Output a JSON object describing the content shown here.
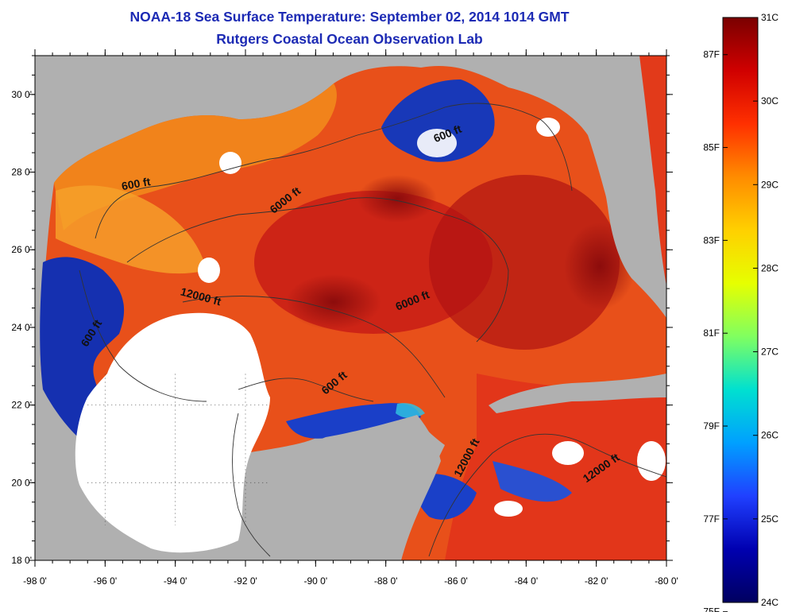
{
  "title": {
    "line1": "NOAA-18 Sea Surface Temperature:  September 02, 2014 1014 GMT",
    "line2": "Rutgers Coastal Ocean Observation Lab"
  },
  "map": {
    "lon_range": [
      -98,
      -80
    ],
    "lat_range": [
      18,
      31
    ],
    "lon_ticks": [
      {
        "value": -98,
        "label": "-98 0'"
      },
      {
        "value": -96,
        "label": "-96 0'"
      },
      {
        "value": -94,
        "label": "-94 0'"
      },
      {
        "value": -92,
        "label": "-92 0'"
      },
      {
        "value": -90,
        "label": "-90 0'"
      },
      {
        "value": -88,
        "label": "-88 0'"
      },
      {
        "value": -86,
        "label": "-86 0'"
      },
      {
        "value": -84,
        "label": "-84 0'"
      },
      {
        "value": -82,
        "label": "-82 0'"
      },
      {
        "value": -80,
        "label": "-80 0'"
      }
    ],
    "lat_ticks": [
      {
        "value": 18,
        "label": "18 0'"
      },
      {
        "value": 20,
        "label": "20 0'"
      },
      {
        "value": 22,
        "label": "22 0'"
      },
      {
        "value": 24,
        "label": "24 0'"
      },
      {
        "value": 26,
        "label": "26 0'"
      },
      {
        "value": 28,
        "label": "28 0'"
      },
      {
        "value": 30,
        "label": "30 0'"
      }
    ],
    "depth_labels": [
      {
        "text": "600 ft",
        "lon": -86.2,
        "lat": 28.9,
        "angle": -22
      },
      {
        "text": "600 ft",
        "lon": -95.1,
        "lat": 27.6,
        "angle": -10
      },
      {
        "text": "6000 ft",
        "lon": -90.8,
        "lat": 27.2,
        "angle": -38
      },
      {
        "text": "12000 ft",
        "lon": -93.3,
        "lat": 24.7,
        "angle": 15
      },
      {
        "text": "6000 ft",
        "lon": -87.2,
        "lat": 24.6,
        "angle": -22
      },
      {
        "text": "600 ft",
        "lon": -96.3,
        "lat": 23.8,
        "angle": -58
      },
      {
        "text": "600 ft",
        "lon": -89.4,
        "lat": 22.5,
        "angle": -40
      },
      {
        "text": "12000 ft",
        "lon": -85.6,
        "lat": 20.6,
        "angle": -62
      },
      {
        "text": "12000 ft",
        "lon": -81.8,
        "lat": 20.3,
        "angle": -35
      }
    ],
    "colors": {
      "land": "#b0b0b0",
      "cloud": "#ffffff",
      "warm": "#d01818",
      "hot": "#9a0e0e",
      "mid": "#ee6a14",
      "cool": "#f3a51f",
      "cold": "#1030b8"
    }
  },
  "colorbar": {
    "celsius": [
      {
        "value": 31,
        "label": "31C"
      },
      {
        "value": 30,
        "label": "30C"
      },
      {
        "value": 29,
        "label": "29C"
      },
      {
        "value": 28,
        "label": "28C"
      },
      {
        "value": 27,
        "label": "27C"
      },
      {
        "value": 26,
        "label": "26C"
      },
      {
        "value": 25,
        "label": "25C"
      },
      {
        "value": 24,
        "label": "24C"
      }
    ],
    "fahrenheit": [
      {
        "value": 87,
        "label": "87F"
      },
      {
        "value": 85,
        "label": "85F"
      },
      {
        "value": 83,
        "label": "83F"
      },
      {
        "value": 81,
        "label": "81F"
      },
      {
        "value": 79,
        "label": "79F"
      },
      {
        "value": 77,
        "label": "77F"
      },
      {
        "value": 75,
        "label": "75F"
      }
    ],
    "stops": [
      "#7a0000",
      "#d00000",
      "#ff3000",
      "#ff8c00",
      "#ffd000",
      "#e6ff00",
      "#80ff60",
      "#00e0d0",
      "#00a0ff",
      "#2040ff",
      "#0000b0",
      "#000060"
    ]
  }
}
